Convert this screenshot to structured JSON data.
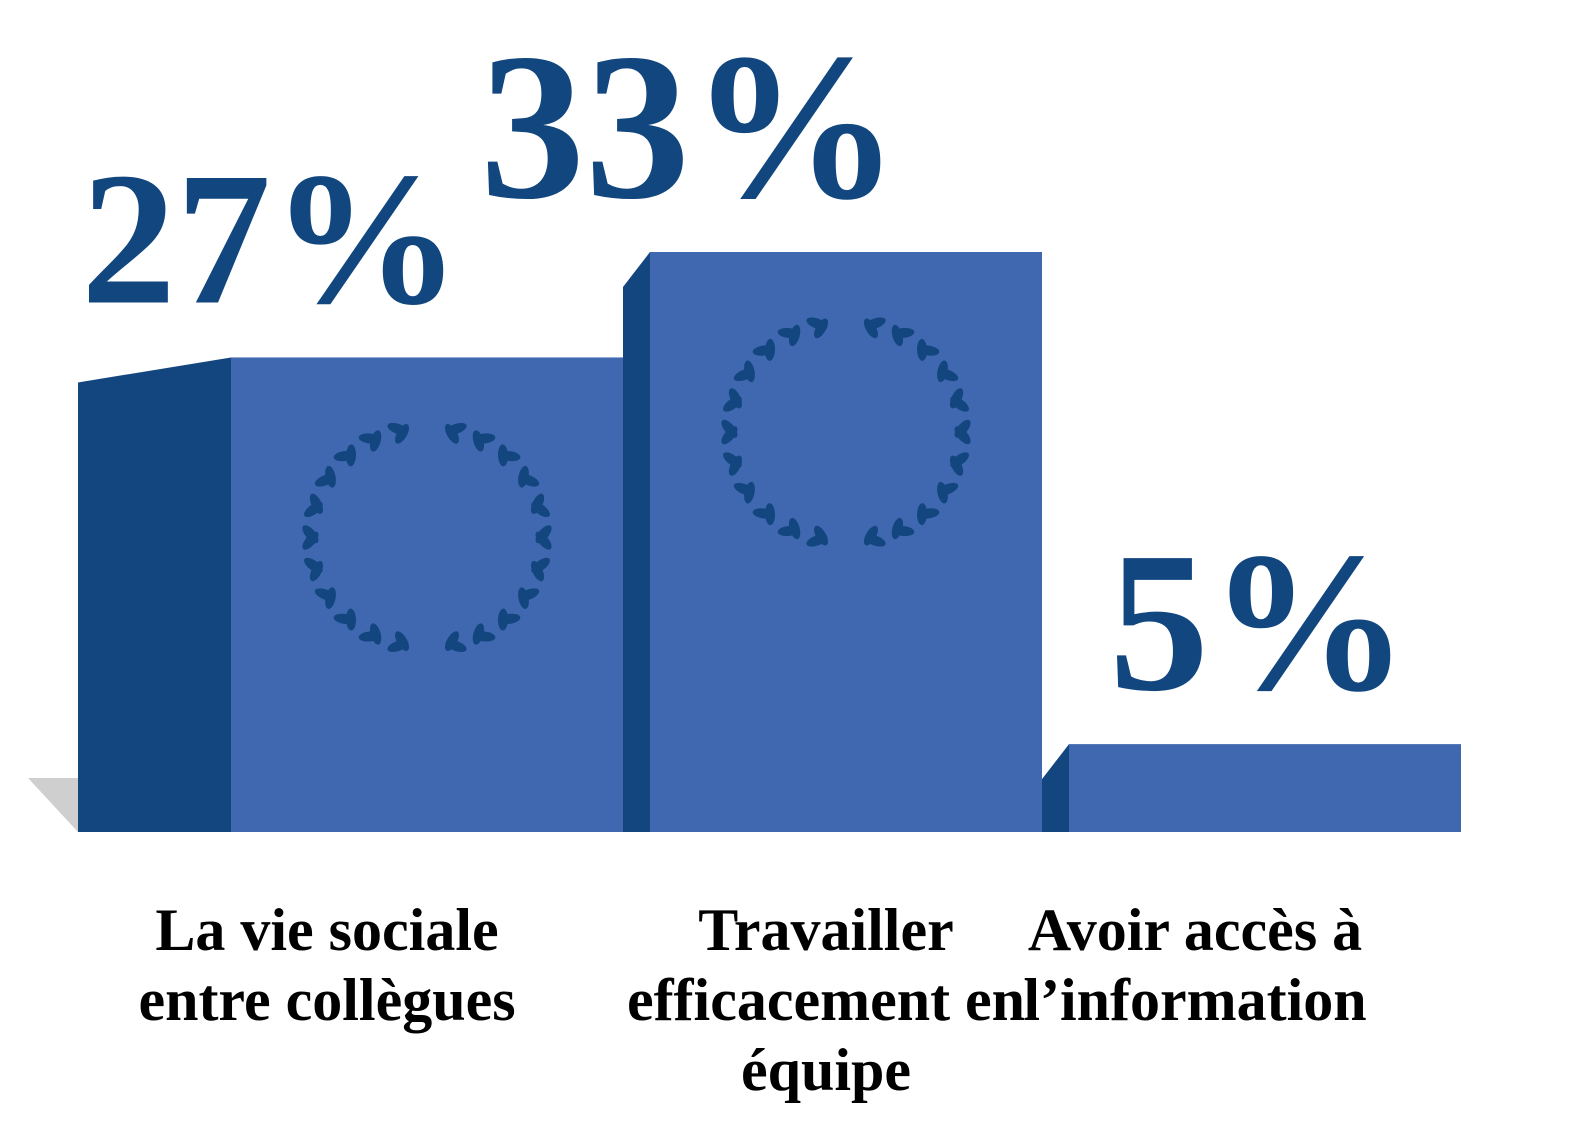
{
  "chart_data": {
    "type": "bar",
    "categories": [
      "La vie sociale entre collègues",
      "Travailler efficacement en équipe",
      "Avoir accès à l’information"
    ],
    "values": [
      27,
      33,
      5
    ],
    "value_labels": [
      "27%",
      "33%",
      "5%"
    ],
    "color": "#3f68b1"
  }
}
